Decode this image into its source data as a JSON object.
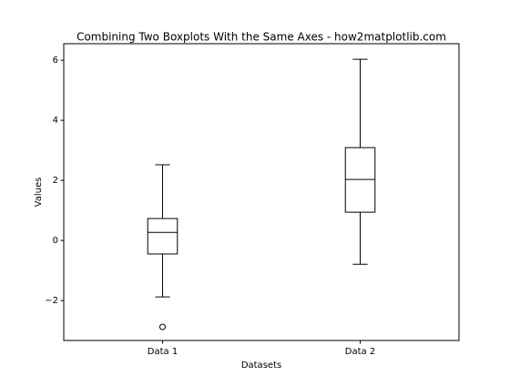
{
  "chart_data": {
    "type": "boxplot",
    "title": "Combining Two Boxplots With the Same Axes - how2matplotlib.com",
    "x_label": "Datasets",
    "y_label": "Values",
    "categories": [
      "Data 1",
      "Data 2"
    ],
    "boxes": [
      {
        "whislo": -1.88,
        "q1": -0.45,
        "med": 0.27,
        "q3": 0.73,
        "whishi": 2.52,
        "fliers": [
          -2.88
        ]
      },
      {
        "whislo": -0.79,
        "q1": 0.94,
        "med": 2.03,
        "q3": 3.09,
        "whishi": 6.03,
        "fliers": []
      }
    ],
    "box_color": "#000000",
    "median_color": "#ff7f0e",
    "ylim": [
      -3.33,
      6.55
    ],
    "yticks": [
      {
        "value": -2,
        "label": "−2"
      },
      0,
      2,
      4,
      6
    ]
  }
}
